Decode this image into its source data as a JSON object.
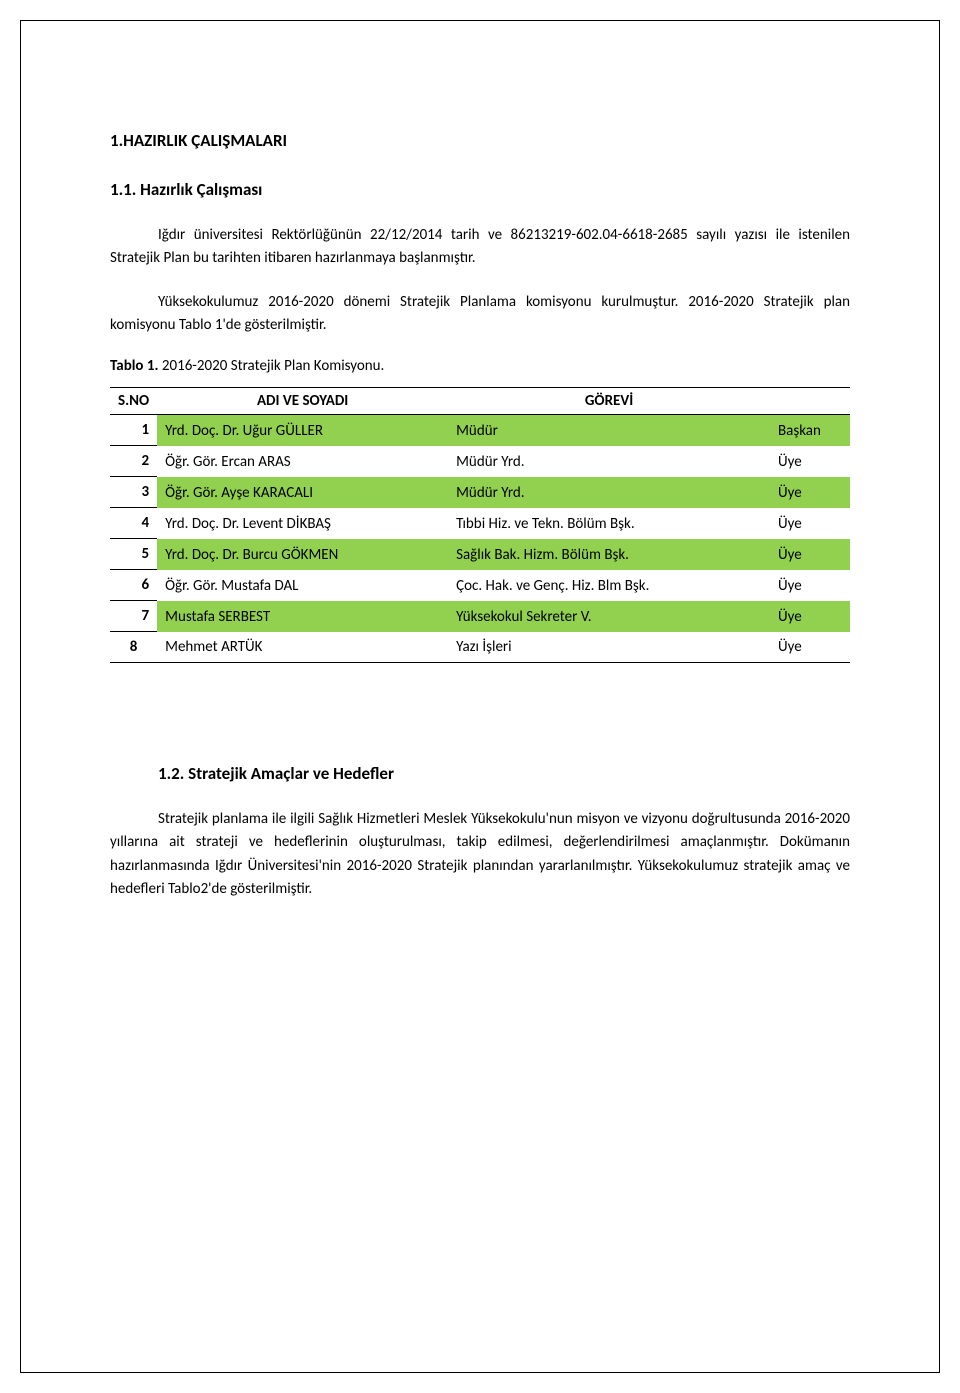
{
  "heading1": "1.HAZIRLIK ÇALIŞMALARI",
  "heading2": "1.1. Hazırlık Çalışması",
  "para1": "Iğdır üniversitesi Rektörlüğünün 22/12/2014 tarih ve 86213219-602.04-6618-2685 sayılı yazısı ile istenilen Stratejik Plan bu tarihten itibaren hazırlanmaya başlanmıştır.",
  "para2": "Yüksekokulumuz 2016-2020 dönemi Stratejik Planlama komisyonu kurulmuştur. 2016-2020 Stratejik plan komisyonu Tablo 1'de gösterilmiştir.",
  "table_caption_bold": "Tablo 1.",
  "table_caption_rest": " 2016-2020 Stratejik Plan Komisyonu.",
  "table": {
    "columns": {
      "sno": "S.NO",
      "name": "ADI VE SOYADI",
      "role": "GÖREVİ",
      "pos": ""
    },
    "green_color": "#92d050",
    "rows": [
      {
        "sno": "1",
        "name": "Yrd. Doç. Dr. Uğur GÜLLER",
        "role": "Müdür",
        "pos": "Başkan",
        "green": true
      },
      {
        "sno": "2",
        "name": "Öğr. Gör. Ercan ARAS",
        "role": "Müdür Yrd.",
        "pos": "Üye",
        "green": false
      },
      {
        "sno": "3",
        "name": "Öğr. Gör. Ayşe KARACALI",
        "role": "Müdür Yrd.",
        "pos": "Üye",
        "green": true
      },
      {
        "sno": "4",
        "name": "Yrd. Doç. Dr. Levent DİKBAŞ",
        "role": "Tıbbi Hiz. ve Tekn. Bölüm Bşk.",
        "pos": "Üye",
        "green": false
      },
      {
        "sno": "5",
        "name": "Yrd. Doç. Dr. Burcu GÖKMEN",
        "role": "Sağlık Bak. Hizm. Bölüm Bşk.",
        "pos": "Üye",
        "green": true
      },
      {
        "sno": "6",
        "name": "Öğr. Gör. Mustafa DAL",
        "role": "Çoc. Hak. ve Genç. Hiz. Blm Bşk.",
        "pos": "Üye",
        "green": false
      },
      {
        "sno": "7",
        "name": "Mustafa SERBEST",
        "role": "Yüksekokul Sekreter V.",
        "pos": "Üye",
        "green": true
      },
      {
        "sno": "8",
        "name": "Mehmet ARTÜK",
        "role": "Yazı İşleri",
        "pos": "Üye",
        "green": false
      }
    ]
  },
  "heading3": "1.2. Stratejik Amaçlar ve Hedefler",
  "para3": "Stratejik planlama ile ilgili Sağlık Hizmetleri Meslek Yüksekokulu'nun misyon ve vizyonu doğrultusunda 2016-2020 yıllarına ait strateji ve hedeflerinin oluşturulması, takip edilmesi, değerlendirilmesi amaçlanmıştır. Dokümanın hazırlanmasında Iğdır Üniversitesi'nin 2016-2020 Stratejik planından yararlanılmıştır.  Yüksekokulumuz stratejik amaç ve hedefleri Tablo2'de gösterilmiştir."
}
